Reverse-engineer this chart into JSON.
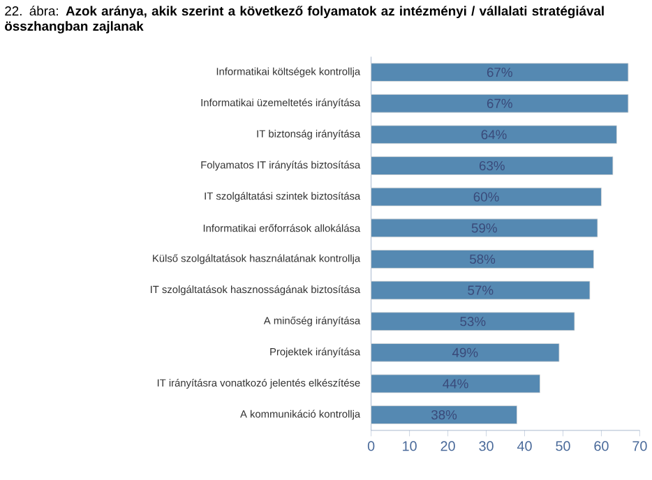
{
  "chart_data": {
    "type": "bar",
    "orientation": "horizontal",
    "title": "22. ábra: **Azok aránya, akik szerint a következő folyamatok az intézményi / vállalati stratégiával összhangban zajlanak**",
    "categories": [
      "Informatikai költségek kontrollja",
      "Informatikai üzemeltetés irányítása",
      "IT biztonság irányítása",
      "Folyamatos IT irányítás biztosítása",
      "IT szolgáltatási szintek biztosítása",
      "Informatikai erőforrások allokálása",
      "Külső szolgáltatások használatának kontrollja",
      "IT szolgáltatások hasznosságának biztosítása",
      "A minőség irányítása",
      "Projektek irányítása",
      "IT irányításra vonatkozó jelentés elkészítése",
      "A kommunikáció kontrollja"
    ],
    "values": [
      67,
      67,
      64,
      63,
      60,
      59,
      58,
      57,
      53,
      49,
      44,
      38
    ],
    "value_labels": [
      "67%",
      "67%",
      "64%",
      "63%",
      "60%",
      "59%",
      "58%",
      "57%",
      "53%",
      "49%",
      "44%",
      "38%"
    ],
    "color": "#5589b2",
    "xlim": [
      0,
      70
    ],
    "xticks": [
      0,
      10,
      20,
      30,
      40,
      50,
      60,
      70
    ]
  }
}
